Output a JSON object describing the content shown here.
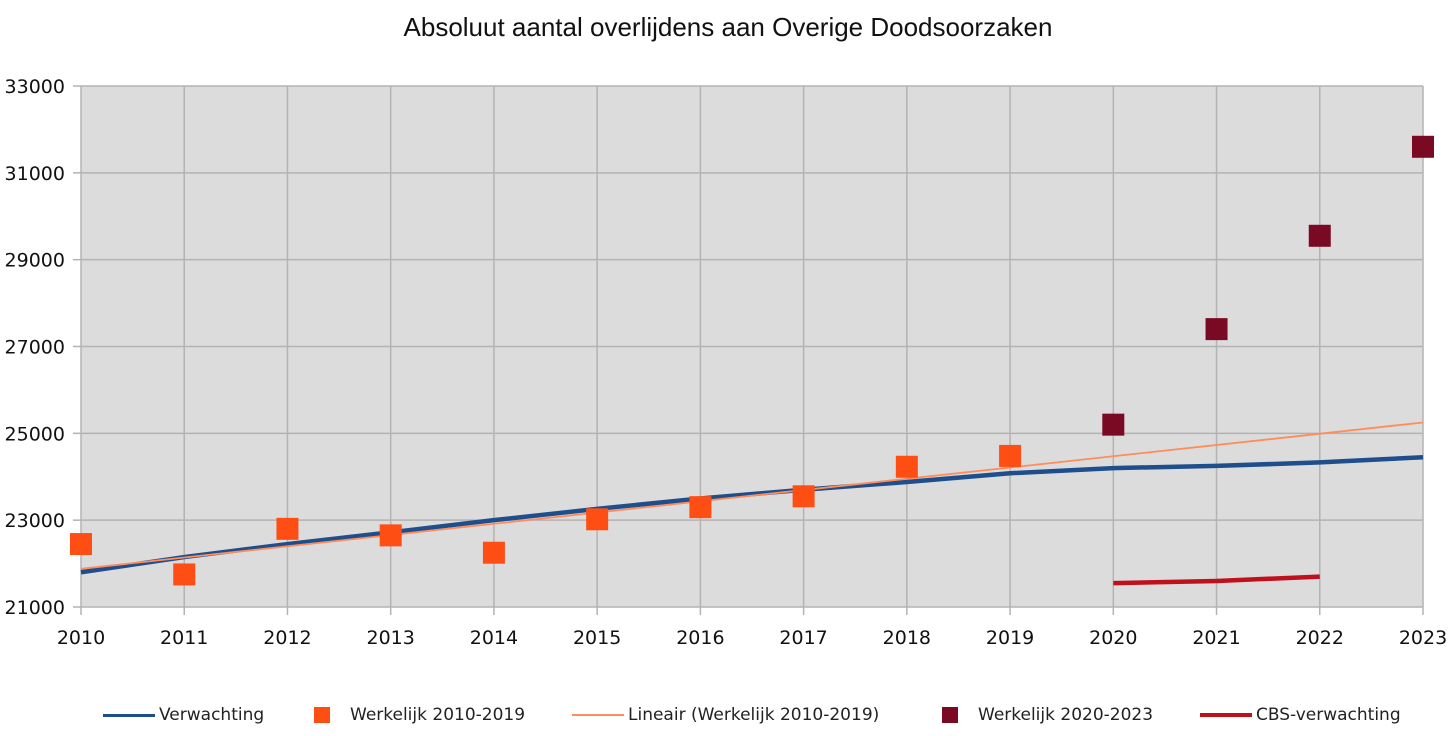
{
  "chart_data": {
    "type": "line",
    "title": "Absoluut aantal overlijdens aan Overige Doodsoorzaken",
    "xlabel": "",
    "ylabel": "",
    "x": [
      2010,
      2011,
      2012,
      2013,
      2014,
      2015,
      2016,
      2017,
      2018,
      2019,
      2020,
      2021,
      2022,
      2023
    ],
    "x_tick_labels": [
      "2010",
      "2011",
      "2012",
      "2013",
      "2014",
      "2015",
      "2016",
      "2017",
      "2018",
      "2019",
      "2020",
      "2021",
      "2022",
      "2023"
    ],
    "xlim": [
      2010,
      2023
    ],
    "ylim": [
      21000,
      33000
    ],
    "y_ticks": [
      21000,
      23000,
      25000,
      27000,
      29000,
      31000,
      33000
    ],
    "y_tick_labels": [
      "21000",
      "23000",
      "25000",
      "27000",
      "29000",
      "31000",
      "33000"
    ],
    "grid": true,
    "plot_background": "#dcdcdc",
    "legend_position": "bottom",
    "series": [
      {
        "name": "Verwachting",
        "type": "line",
        "color": "#1f4e8c",
        "x": [
          2010,
          2011,
          2012,
          2013,
          2014,
          2015,
          2016,
          2017,
          2018,
          2019,
          2020,
          2021,
          2022,
          2023
        ],
        "values": [
          21800,
          22150,
          22450,
          22720,
          23000,
          23260,
          23500,
          23700,
          23880,
          24080,
          24200,
          24250,
          24330,
          24450
        ]
      },
      {
        "name": "Werkelijk 2010-2019",
        "type": "scatter",
        "color": "#ff4e14",
        "x": [
          2010,
          2011,
          2012,
          2013,
          2014,
          2015,
          2016,
          2017,
          2018,
          2019
        ],
        "values": [
          22450,
          21750,
          22800,
          22650,
          22250,
          23020,
          23300,
          23550,
          24230,
          24480
        ]
      },
      {
        "name": "Lineair (Werkelijk 2010-2019)",
        "type": "line",
        "color": "#ff8c5a",
        "x": [
          2010,
          2023
        ],
        "values": [
          21880,
          25250
        ]
      },
      {
        "name": "Werkelijk 2020-2023",
        "type": "scatter",
        "color": "#7a0a23",
        "x": [
          2020,
          2021,
          2022,
          2023
        ],
        "values": [
          25200,
          27400,
          29550,
          31600
        ]
      },
      {
        "name": "CBS-verwachting",
        "type": "line",
        "color": "#c0101c",
        "x": [
          2020,
          2021,
          2022
        ],
        "values": [
          21550,
          21600,
          21700
        ]
      }
    ]
  }
}
